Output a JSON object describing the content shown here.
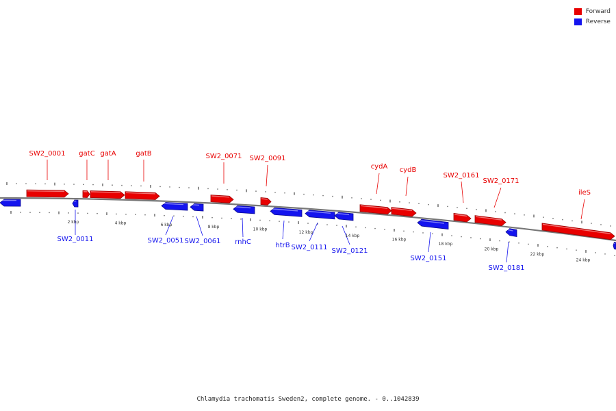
{
  "colors": {
    "forward": "#e80000",
    "reverse": "#1414ee",
    "backbone": "#777777"
  },
  "legend": [
    {
      "label": "Forward",
      "color": "#e80000"
    },
    {
      "label": "Reverse",
      "color": "#1414ee"
    }
  ],
  "caption": "Chlamydia trachomatis Sweden2, complete genome. - 0..1042839",
  "tick_labels": [
    "2 kbp",
    "4 kbp",
    "6 kbp",
    "8 kbp",
    "10 kbp",
    "12 kbp",
    "14 kbp",
    "16 kbp",
    "18 kbp",
    "20 kbp",
    "22 kbp",
    "24 kbp"
  ],
  "genes": [
    {
      "name": "",
      "strand": "reverse"
    },
    {
      "name": "SW2_0001",
      "strand": "forward"
    },
    {
      "name": "SW2_0011",
      "strand": "reverse"
    },
    {
      "name": "gatC",
      "strand": "forward"
    },
    {
      "name": "gatA",
      "strand": "forward"
    },
    {
      "name": "gatB",
      "strand": "forward"
    },
    {
      "name": "SW2_0051",
      "strand": "reverse"
    },
    {
      "name": "SW2_0061",
      "strand": "reverse"
    },
    {
      "name": "SW2_0071",
      "strand": "forward"
    },
    {
      "name": "rnhC",
      "strand": "reverse"
    },
    {
      "name": "SW2_0091",
      "strand": "forward"
    },
    {
      "name": "htrB",
      "strand": "reverse"
    },
    {
      "name": "SW2_0111",
      "strand": "reverse"
    },
    {
      "name": "SW2_0121",
      "strand": "reverse"
    },
    {
      "name": "cydA",
      "strand": "forward"
    },
    {
      "name": "cydB",
      "strand": "forward"
    },
    {
      "name": "SW2_0151",
      "strand": "reverse"
    },
    {
      "name": "SW2_0161",
      "strand": "forward"
    },
    {
      "name": "SW2_0171",
      "strand": "forward"
    },
    {
      "name": "SW2_0181",
      "strand": "reverse"
    },
    {
      "name": "ileS",
      "strand": "forward"
    },
    {
      "name": "",
      "strand": "reverse"
    }
  ]
}
